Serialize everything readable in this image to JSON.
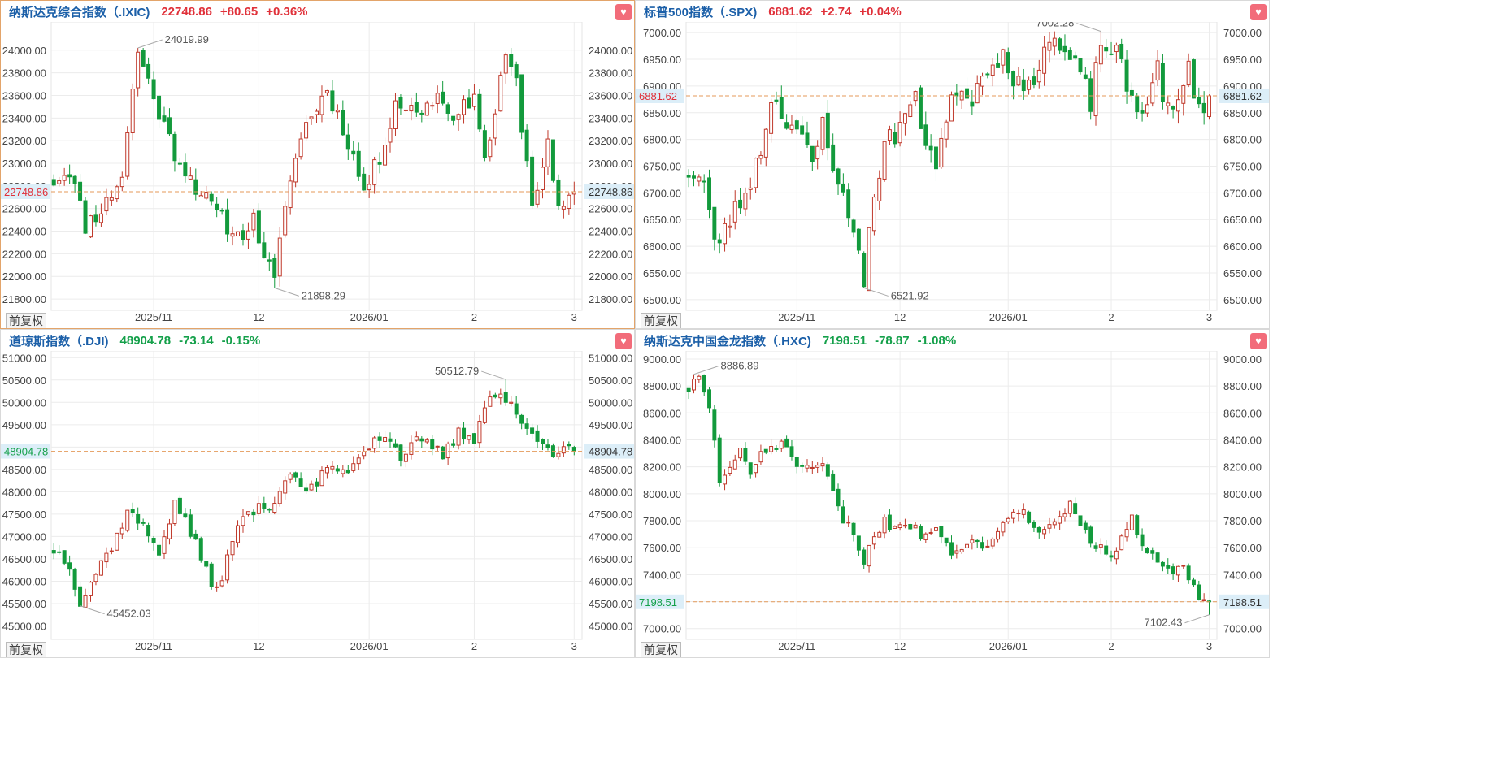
{
  "panels": [
    {
      "name": "纳斯达克综合指数（.IXIC)",
      "price": "22748.86",
      "change": "+80.65",
      "pct": "+0.36%",
      "direction": "up",
      "fav_icon": "heart-icon",
      "adjust_label": "前复权",
      "chart_data": {
        "type": "candlestick",
        "y_ticks": [
          "24000.00",
          "23800.00",
          "23600.00",
          "23400.00",
          "23200.00",
          "23000.00",
          "22800.00",
          "22600.00",
          "22400.00",
          "22200.00",
          "22000.00",
          "21800.00"
        ],
        "ylim": [
          21700,
          24250
        ],
        "x_ticks": [
          {
            "label": "2025/11",
            "index": 19
          },
          {
            "label": "12",
            "index": 39
          },
          {
            "label": "2026/01",
            "index": 60
          },
          {
            "label": "2",
            "index": 80
          },
          {
            "label": "3",
            "index": 99
          }
        ],
        "n": 100,
        "current_price": 22748.86,
        "current_label": "22748.86",
        "high": {
          "value": 24019.99,
          "label": "24019.99",
          "index": 16
        },
        "low": {
          "value": 21898.29,
          "label": "21898.29",
          "index": 42
        },
        "anchors": [
          [
            0,
            22850
          ],
          [
            3,
            22950
          ],
          [
            6,
            22450
          ],
          [
            10,
            22650
          ],
          [
            13,
            22900
          ],
          [
            16,
            24000
          ],
          [
            20,
            23450
          ],
          [
            23,
            23100
          ],
          [
            27,
            22800
          ],
          [
            31,
            22550
          ],
          [
            35,
            22350
          ],
          [
            38,
            22500
          ],
          [
            40,
            22200
          ],
          [
            42,
            21950
          ],
          [
            45,
            22900
          ],
          [
            48,
            23350
          ],
          [
            52,
            23650
          ],
          [
            56,
            23200
          ],
          [
            59,
            22750
          ],
          [
            62,
            23050
          ],
          [
            65,
            23550
          ],
          [
            69,
            23450
          ],
          [
            73,
            23600
          ],
          [
            77,
            23400
          ],
          [
            80,
            23650
          ],
          [
            82,
            23000
          ],
          [
            85,
            23700
          ],
          [
            86,
            23950
          ],
          [
            88,
            23700
          ],
          [
            91,
            22650
          ],
          [
            94,
            23150
          ],
          [
            96,
            22550
          ],
          [
            99,
            22700
          ],
          [
            104,
            22760
          ],
          [
            106,
            22700
          ],
          [
            107,
            22900
          ],
          [
            109,
            22650
          ],
          [
            110,
            22748.86
          ]
        ],
        "first": 22850,
        "last": 22748.86,
        "vol": 110,
        "seed": 11
      }
    },
    {
      "name": "标普500指数（.SPX)",
      "price": "6881.62",
      "change": "+2.74",
      "pct": "+0.04%",
      "direction": "up",
      "fav_icon": "heart-icon",
      "adjust_label": "前复权",
      "chart_data": {
        "type": "candlestick",
        "y_ticks": [
          "7000.00",
          "6950.00",
          "6900.00",
          "6850.00",
          "6800.00",
          "6750.00",
          "6700.00",
          "6650.00",
          "6600.00",
          "6550.00",
          "6500.00"
        ],
        "ylim": [
          6480,
          7020
        ],
        "x_ticks": [
          {
            "label": "2025/11",
            "index": 21
          },
          {
            "label": "12",
            "index": 41
          },
          {
            "label": "2026/01",
            "index": 62
          },
          {
            "label": "2",
            "index": 82
          },
          {
            "label": "3",
            "index": 101
          }
        ],
        "n": 102,
        "current_price": 6881.62,
        "current_label": "6881.62",
        "high": {
          "value": 7002.28,
          "label": "7002.28",
          "index": 80
        },
        "low": {
          "value": 6521.92,
          "label": "6521.92",
          "index": 34
        },
        "anchors": [
          [
            0,
            6740
          ],
          [
            3,
            6720
          ],
          [
            5,
            6600
          ],
          [
            8,
            6650
          ],
          [
            11,
            6700
          ],
          [
            14,
            6780
          ],
          [
            16,
            6880
          ],
          [
            18,
            6850
          ],
          [
            21,
            6820
          ],
          [
            24,
            6750
          ],
          [
            26,
            6830
          ],
          [
            28,
            6760
          ],
          [
            31,
            6650
          ],
          [
            33,
            6600
          ],
          [
            34,
            6540
          ],
          [
            36,
            6700
          ],
          [
            38,
            6790
          ],
          [
            40,
            6810
          ],
          [
            42,
            6850
          ],
          [
            44,
            6870
          ],
          [
            46,
            6800
          ],
          [
            48,
            6760
          ],
          [
            50,
            6830
          ],
          [
            52,
            6900
          ],
          [
            55,
            6880
          ],
          [
            58,
            6940
          ],
          [
            61,
            6960
          ],
          [
            64,
            6900
          ],
          [
            66,
            6890
          ],
          [
            68,
            6950
          ],
          [
            70,
            6990
          ],
          [
            73,
            6960
          ],
          [
            76,
            6920
          ],
          [
            78,
            6870
          ],
          [
            80,
            6980
          ],
          [
            83,
            6960
          ],
          [
            85,
            6900
          ],
          [
            87,
            6850
          ],
          [
            89,
            6880
          ],
          [
            91,
            6930
          ],
          [
            93,
            6850
          ],
          [
            95,
            6860
          ],
          [
            97,
            6940
          ],
          [
            99,
            6850
          ],
          [
            101,
            6881.62
          ]
        ],
        "first": 6740,
        "last": 6881.62,
        "vol": 28,
        "seed": 23
      }
    },
    {
      "name": "道琼斯指数（.DJI)",
      "price": "48904.78",
      "change": "-73.14",
      "pct": "-0.15%",
      "direction": "down",
      "fav_icon": "heart-icon",
      "adjust_label": "前复权",
      "chart_data": {
        "type": "candlestick",
        "y_ticks": [
          "51000.00",
          "50500.00",
          "50000.00",
          "49500.00",
          "49000.00",
          "48500.00",
          "48000.00",
          "47500.00",
          "47000.00",
          "46500.00",
          "46000.00",
          "45500.00",
          "45000.00"
        ],
        "ylim": [
          44700,
          51150
        ],
        "x_ticks": [
          {
            "label": "2025/11",
            "index": 19
          },
          {
            "label": "12",
            "index": 39
          },
          {
            "label": "2026/01",
            "index": 60
          },
          {
            "label": "2",
            "index": 80
          },
          {
            "label": "3",
            "index": 99
          }
        ],
        "n": 100,
        "current_price": 48904.78,
        "current_label": "48904.78",
        "high": {
          "value": 50512.79,
          "label": "50512.79",
          "index": 86
        },
        "low": {
          "value": 45452.03,
          "label": "45452.03",
          "index": 5
        },
        "anchors": [
          [
            0,
            46700
          ],
          [
            3,
            46400
          ],
          [
            5,
            45500
          ],
          [
            8,
            46200
          ],
          [
            12,
            47000
          ],
          [
            14,
            47600
          ],
          [
            17,
            47200
          ],
          [
            20,
            46700
          ],
          [
            23,
            47700
          ],
          [
            25,
            47400
          ],
          [
            27,
            46800
          ],
          [
            29,
            46200
          ],
          [
            31,
            45800
          ],
          [
            33,
            46500
          ],
          [
            36,
            47500
          ],
          [
            39,
            47600
          ],
          [
            42,
            47800
          ],
          [
            45,
            48500
          ],
          [
            47,
            48000
          ],
          [
            50,
            48200
          ],
          [
            53,
            48600
          ],
          [
            55,
            48400
          ],
          [
            58,
            48800
          ],
          [
            61,
            49200
          ],
          [
            63,
            49300
          ],
          [
            66,
            48800
          ],
          [
            69,
            49100
          ],
          [
            72,
            49000
          ],
          [
            74,
            48800
          ],
          [
            77,
            49300
          ],
          [
            80,
            49200
          ],
          [
            82,
            50000
          ],
          [
            85,
            50200
          ],
          [
            87,
            49900
          ],
          [
            89,
            49500
          ],
          [
            91,
            49300
          ],
          [
            93,
            49200
          ],
          [
            95,
            48905
          ]
        ],
        "first": 46700,
        "last": 48904.78,
        "vol": 190,
        "seed": 37
      }
    },
    {
      "name": "纳斯达克中国金龙指数（.HXC)",
      "price": "7198.51",
      "change": "-78.87",
      "pct": "-1.08%",
      "direction": "down",
      "fav_icon": "heart-icon",
      "adjust_label": "前复权",
      "chart_data": {
        "type": "candlestick",
        "y_ticks": [
          "9000.00",
          "8800.00",
          "8600.00",
          "8400.00",
          "8200.00",
          "8000.00",
          "7800.00",
          "7600.00",
          "7400.00",
          "7200.00",
          "7000.00"
        ],
        "ylim": [
          6920,
          9060
        ],
        "x_ticks": [
          {
            "label": "2025/11",
            "index": 21
          },
          {
            "label": "12",
            "index": 41
          },
          {
            "label": "2026/01",
            "index": 62
          },
          {
            "label": "2",
            "index": 82
          },
          {
            "label": "3",
            "index": 101
          }
        ],
        "n": 102,
        "current_price": 7198.51,
        "current_label": "7198.51",
        "high": {
          "value": 8886.89,
          "label": "8886.89",
          "index": 1
        },
        "low": {
          "value": 7102.43,
          "label": "7102.43",
          "index": 101
        },
        "anchors": [
          [
            0,
            8780
          ],
          [
            2,
            8850
          ],
          [
            4,
            8650
          ],
          [
            6,
            8100
          ],
          [
            8,
            8200
          ],
          [
            10,
            8300
          ],
          [
            12,
            8150
          ],
          [
            14,
            8300
          ],
          [
            16,
            8350
          ],
          [
            18,
            8380
          ],
          [
            20,
            8250
          ],
          [
            22,
            8200
          ],
          [
            24,
            8150
          ],
          [
            26,
            8220
          ],
          [
            28,
            8000
          ],
          [
            30,
            7800
          ],
          [
            32,
            7700
          ],
          [
            34,
            7500
          ],
          [
            36,
            7700
          ],
          [
            38,
            7800
          ],
          [
            40,
            7750
          ],
          [
            42,
            7800
          ],
          [
            45,
            7700
          ],
          [
            48,
            7750
          ],
          [
            50,
            7600
          ],
          [
            52,
            7580
          ],
          [
            55,
            7650
          ],
          [
            58,
            7600
          ],
          [
            60,
            7750
          ],
          [
            62,
            7850
          ],
          [
            64,
            7900
          ],
          [
            66,
            7800
          ],
          [
            68,
            7700
          ],
          [
            70,
            7800
          ],
          [
            72,
            7850
          ],
          [
            74,
            7900
          ],
          [
            76,
            7750
          ],
          [
            78,
            7650
          ],
          [
            80,
            7600
          ],
          [
            82,
            7500
          ],
          [
            84,
            7650
          ],
          [
            86,
            7800
          ],
          [
            88,
            7650
          ],
          [
            90,
            7550
          ],
          [
            92,
            7500
          ],
          [
            94,
            7450
          ],
          [
            96,
            7500
          ],
          [
            98,
            7300
          ],
          [
            100,
            7200
          ],
          [
            101,
            7198.51
          ]
        ],
        "first": 8780,
        "last": 7198.51,
        "vol": 60,
        "seed": 51
      }
    }
  ]
}
